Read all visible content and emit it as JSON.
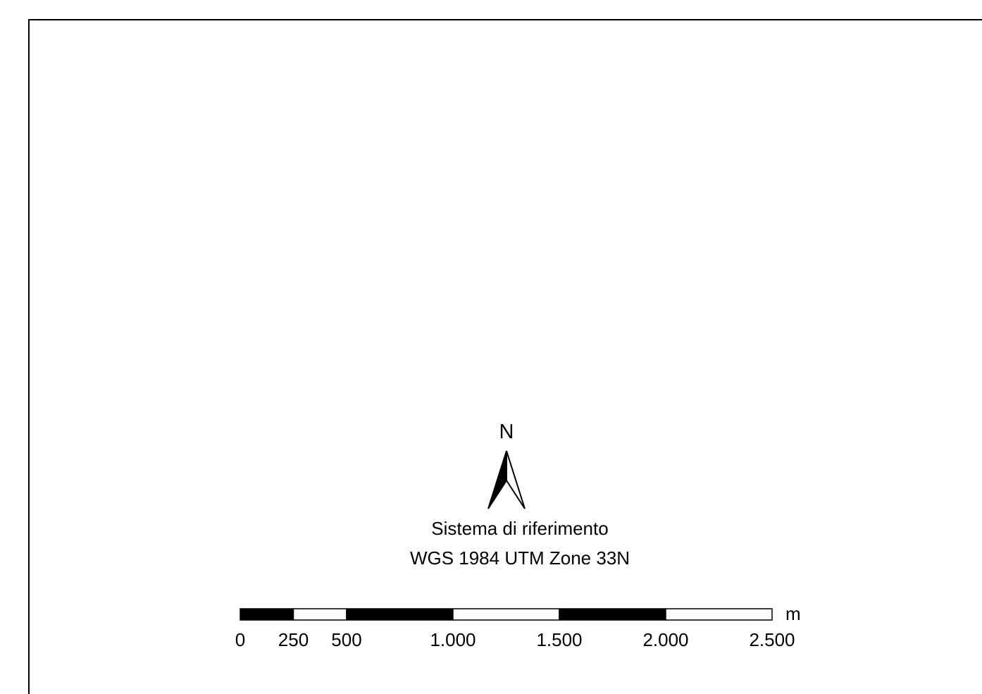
{
  "north_arrow": {
    "letter": "N"
  },
  "reference_system": {
    "line1": "Sistema di riferimento",
    "line2": "WGS 1984 UTM Zone 33N"
  },
  "scale_bar": {
    "unit": "m",
    "ticks": [
      {
        "value": 0,
        "label": "0"
      },
      {
        "value": 250,
        "label": "250"
      },
      {
        "value": 500,
        "label": "500"
      },
      {
        "value": 1000,
        "label": "1.000"
      },
      {
        "value": 1500,
        "label": "1.500"
      },
      {
        "value": 2000,
        "label": "2.000"
      },
      {
        "value": 2500,
        "label": "2.500"
      }
    ],
    "segments": [
      {
        "from": 0,
        "to": 250,
        "fill": "#000000"
      },
      {
        "from": 250,
        "to": 500,
        "fill": "#ffffff"
      },
      {
        "from": 500,
        "to": 1000,
        "fill": "#000000"
      },
      {
        "from": 1000,
        "to": 1500,
        "fill": "#ffffff"
      },
      {
        "from": 1500,
        "to": 2000,
        "fill": "#000000"
      },
      {
        "from": 2000,
        "to": 2500,
        "fill": "#ffffff"
      }
    ]
  },
  "colors": {
    "ink": "#000000",
    "paper": "#ffffff"
  }
}
